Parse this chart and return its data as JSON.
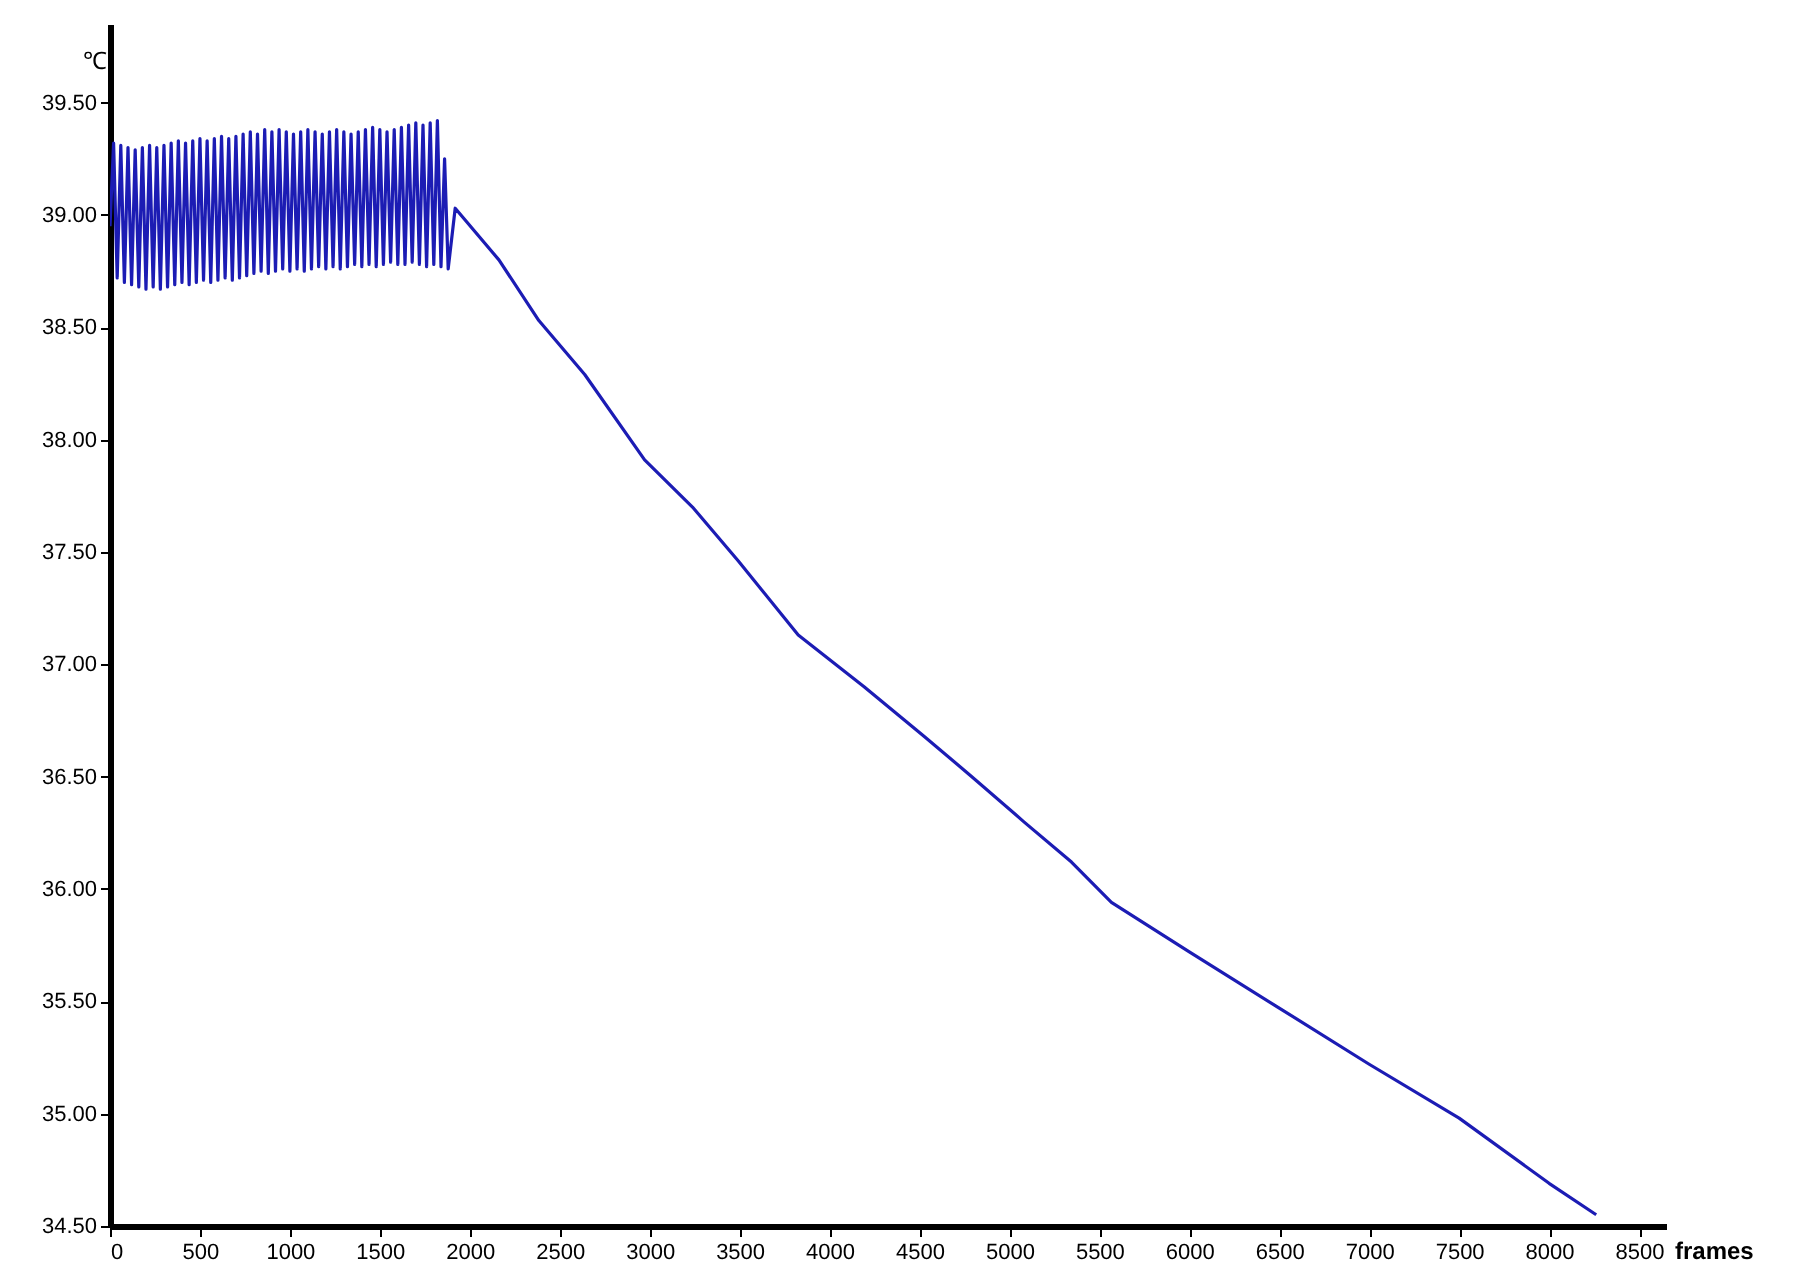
{
  "chart_data": {
    "type": "line",
    "xlabel": "frames",
    "ylabel": "℃",
    "xlim": [
      0,
      8650
    ],
    "ylim": [
      34.5,
      39.85
    ],
    "xticks": [
      0,
      500,
      1000,
      1500,
      2000,
      2500,
      3000,
      3500,
      4000,
      4500,
      5000,
      5500,
      6000,
      6500,
      7000,
      7500,
      8000,
      8500
    ],
    "yticks": [
      {
        "value": 34.5,
        "label": "34.50"
      },
      {
        "value": 35,
        "label": "35.00"
      },
      {
        "value": 35.5,
        "label": "35.50"
      },
      {
        "value": 36,
        "label": "36.00"
      },
      {
        "value": 36.5,
        "label": "36.50"
      },
      {
        "value": 37,
        "label": "37.00"
      },
      {
        "value": 37.5,
        "label": "37.50"
      },
      {
        "value": 38,
        "label": "38.00"
      },
      {
        "value": 38.5,
        "label": "38.50"
      },
      {
        "value": 39,
        "label": "39.00"
      },
      {
        "value": 39.5,
        "label": "39.50"
      }
    ],
    "line_style": "solid",
    "series": [
      {
        "color": "#1c1cb4",
        "x": [
          0,
          20,
          40,
          60,
          80,
          100,
          120,
          140,
          160,
          180,
          200,
          220,
          240,
          260,
          280,
          300,
          320,
          340,
          360,
          380,
          400,
          420,
          440,
          460,
          480,
          500,
          520,
          540,
          560,
          580,
          600,
          620,
          640,
          660,
          680,
          700,
          720,
          740,
          760,
          780,
          800,
          820,
          840,
          860,
          880,
          900,
          920,
          940,
          960,
          980,
          1000,
          1020,
          1040,
          1060,
          1080,
          1100,
          1120,
          1140,
          1160,
          1180,
          1200,
          1220,
          1240,
          1260,
          1280,
          1300,
          1320,
          1340,
          1360,
          1380,
          1400,
          1420,
          1440,
          1460,
          1480,
          1500,
          1520,
          1540,
          1560,
          1580,
          1600,
          1620,
          1640,
          1660,
          1680,
          1700,
          1720,
          1740,
          1760,
          1780,
          1800,
          1820,
          1840,
          1860,
          1880,
          1919,
          2162,
          2384,
          2639,
          2972,
          3238,
          3493,
          3826,
          4192,
          4525,
          4791,
          5079,
          5345,
          5567,
          6000,
          6500,
          7000,
          7500,
          8000,
          8262
        ],
        "values": [
          38.95,
          39.32,
          38.72,
          39.31,
          38.7,
          39.3,
          38.69,
          39.29,
          38.68,
          39.3,
          38.67,
          39.31,
          38.68,
          39.3,
          38.67,
          39.31,
          38.68,
          39.32,
          38.69,
          39.33,
          38.7,
          39.32,
          38.69,
          39.33,
          38.7,
          39.34,
          38.71,
          39.33,
          38.7,
          39.34,
          38.71,
          39.35,
          38.72,
          39.34,
          38.71,
          39.35,
          38.72,
          39.36,
          38.73,
          39.37,
          38.74,
          39.36,
          38.75,
          39.38,
          38.74,
          39.37,
          38.75,
          39.38,
          38.76,
          39.37,
          38.75,
          39.36,
          38.76,
          39.37,
          38.75,
          39.38,
          38.76,
          39.37,
          38.77,
          39.36,
          38.76,
          39.37,
          38.77,
          39.38,
          38.76,
          39.37,
          38.77,
          39.36,
          38.78,
          39.37,
          38.77,
          39.38,
          38.78,
          39.39,
          38.77,
          39.38,
          38.78,
          39.37,
          38.79,
          39.38,
          38.78,
          39.39,
          38.78,
          39.4,
          38.79,
          39.41,
          38.78,
          39.4,
          38.77,
          39.41,
          38.78,
          39.42,
          38.77,
          39.25,
          38.76,
          39.03,
          38.8,
          38.53,
          38.29,
          37.91,
          37.7,
          37.46,
          37.13,
          36.9,
          36.68,
          36.5,
          36.3,
          36.12,
          35.94,
          35.72,
          35.47,
          35.22,
          34.98,
          34.69,
          34.55
        ]
      }
    ]
  }
}
